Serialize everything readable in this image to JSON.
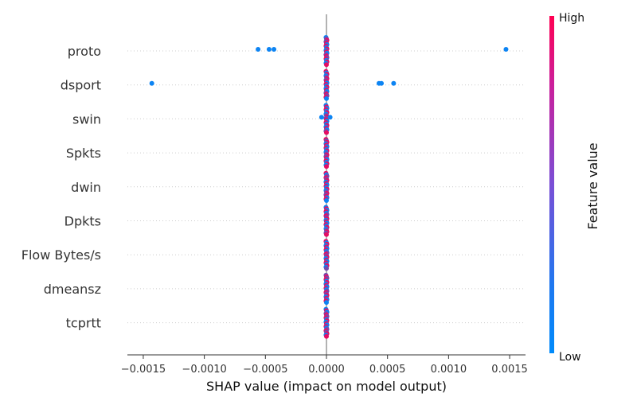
{
  "chart_data": {
    "type": "scatter",
    "xlabel": "SHAP value (impact on model output)",
    "xlim": [
      -0.00163,
      0.00163
    ],
    "xticks": [
      -0.0015,
      -0.001,
      -0.0005,
      0.0,
      0.0005,
      0.001,
      0.0015
    ],
    "xtick_labels": [
      "−0.0015",
      "−0.0010",
      "−0.0005",
      "0.0000",
      "0.0005",
      "0.0010",
      "0.0015"
    ],
    "features": [
      "proto",
      "dsport",
      "swin",
      "Spkts",
      "dwin",
      "Dpkts",
      "Flow Bytes/s",
      "dmeansz",
      "tcprtt"
    ],
    "points": [
      {
        "feature": "proto",
        "x": -0.00056,
        "level": 0.05
      },
      {
        "feature": "proto",
        "x": -0.00047,
        "level": 0.05
      },
      {
        "feature": "proto",
        "x": -0.00043,
        "level": 0.05
      },
      {
        "feature": "proto",
        "x": 0.00147,
        "level": 0.05
      },
      {
        "feature": "dsport",
        "x": -0.00143,
        "level": 0.05
      },
      {
        "feature": "dsport",
        "x": 0.00043,
        "level": 0.05
      },
      {
        "feature": "dsport",
        "x": 0.00045,
        "level": 0.05
      },
      {
        "feature": "dsport",
        "x": 0.00055,
        "level": 0.05
      },
      {
        "feature": "swin",
        "x": -4e-05,
        "level": 0.05
      },
      {
        "feature": "swin",
        "x": 3e-05,
        "level": 0.05
      }
    ],
    "colorbar": {
      "title": "Feature value",
      "high": "High",
      "low": "Low",
      "color_low": "#008bfb",
      "color_high": "#ff0052"
    },
    "grid": "dotted horizontal per feature"
  }
}
